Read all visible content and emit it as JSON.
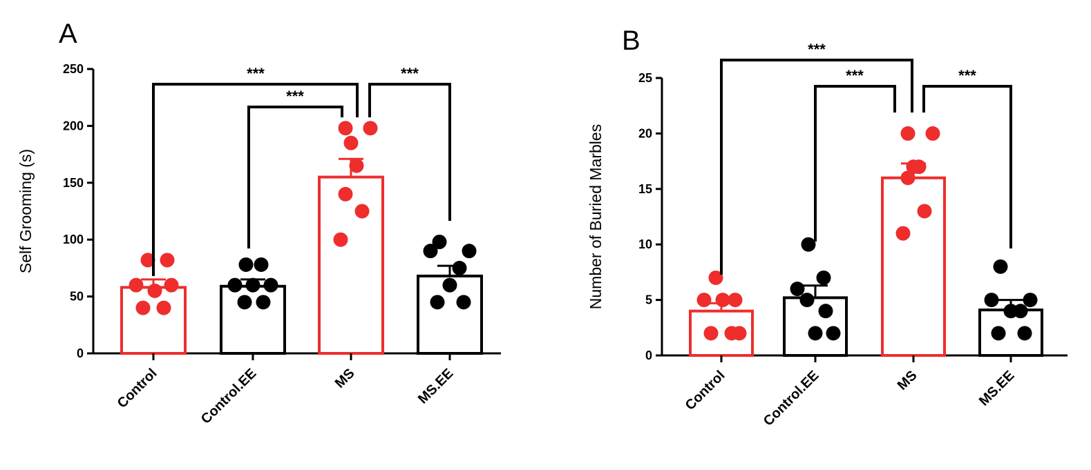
{
  "chart_data": [
    {
      "type": "bar",
      "panel": "A",
      "title": "",
      "xlabel": "",
      "ylabel": "Self Grooming (s)",
      "ylim": [
        0,
        250
      ],
      "yticks": [
        0,
        50,
        100,
        150,
        200,
        250
      ],
      "categories": [
        "Control",
        "Control.EE",
        "MS",
        "MS.EE"
      ],
      "colors": [
        "#ee2d2d",
        "#000000",
        "#ee2d2d",
        "#000000"
      ],
      "values": [
        58,
        59,
        155,
        68
      ],
      "sem": [
        7,
        6,
        16,
        9
      ],
      "points": [
        [
          82,
          82,
          60,
          55,
          40,
          40,
          60
        ],
        [
          78,
          78,
          60,
          45,
          45,
          60,
          60
        ],
        [
          198,
          198,
          185,
          165,
          140,
          125,
          100
        ],
        [
          98,
          90,
          90,
          75,
          60,
          45,
          45
        ]
      ],
      "comparisons": [
        {
          "from": 0,
          "to": 2,
          "label": "***"
        },
        {
          "from": 1,
          "to": 2,
          "label": "***"
        },
        {
          "from": 2,
          "to": 3,
          "label": "***"
        }
      ]
    },
    {
      "type": "bar",
      "panel": "B",
      "title": "",
      "xlabel": "",
      "ylabel": "Number of Buried Marbles",
      "ylim": [
        0,
        25
      ],
      "yticks": [
        0,
        5,
        10,
        15,
        20,
        25
      ],
      "categories": [
        "Control",
        "Control.EE",
        "MS",
        "MS.EE"
      ],
      "colors": [
        "#ee2d2d",
        "#000000",
        "#ee2d2d",
        "#000000"
      ],
      "values": [
        4,
        5.2,
        16,
        4.1
      ],
      "sem": [
        0.7,
        1.1,
        1.3,
        0.9
      ],
      "points": [
        [
          7,
          5,
          5,
          5,
          2,
          2,
          2
        ],
        [
          10,
          7,
          6,
          5,
          4,
          2,
          2
        ],
        [
          20,
          20,
          17,
          17,
          16,
          13,
          11
        ],
        [
          8,
          5,
          5,
          4,
          4,
          2,
          2
        ]
      ],
      "comparisons": [
        {
          "from": 0,
          "to": 2,
          "label": "***"
        },
        {
          "from": 1,
          "to": 2,
          "label": "***"
        },
        {
          "from": 2,
          "to": 3,
          "label": "***"
        }
      ]
    }
  ]
}
